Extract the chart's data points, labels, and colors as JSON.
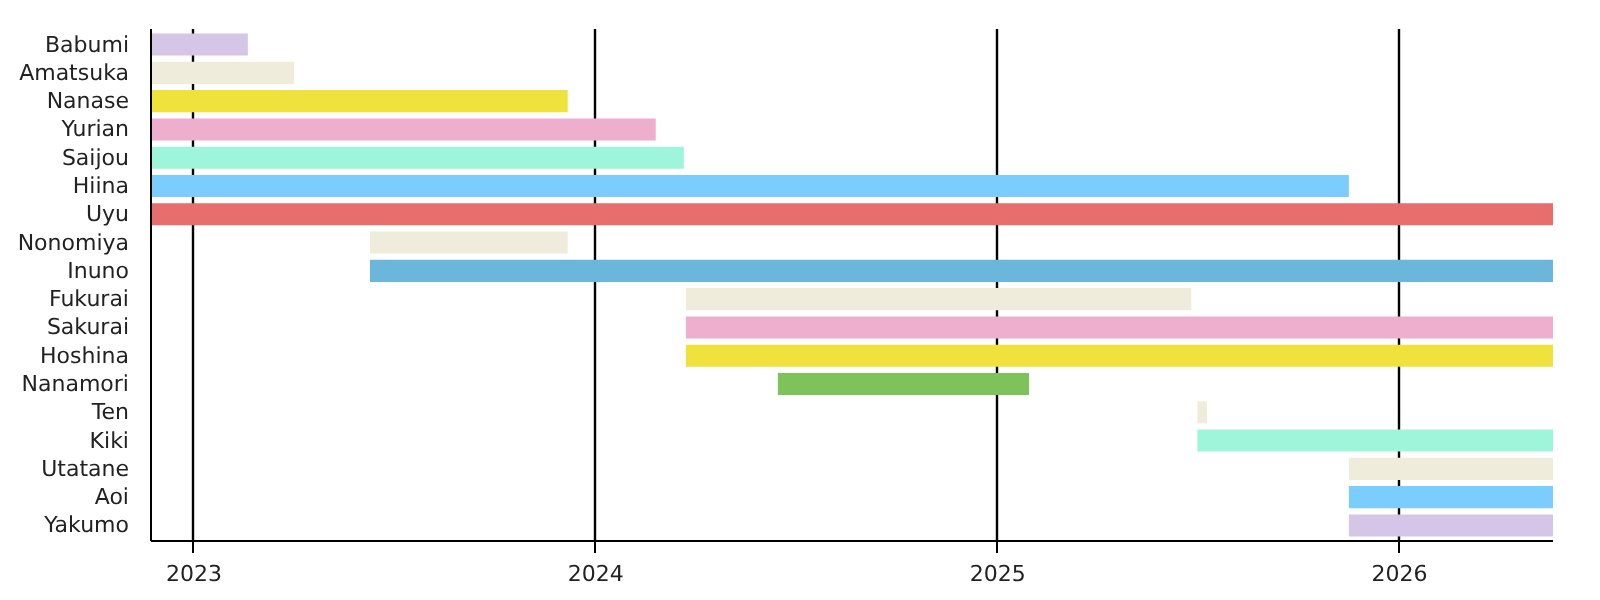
{
  "chart_data": {
    "type": "bar",
    "orientation": "horizontal",
    "grid": "x",
    "categories": [
      "Babumi",
      "Amatsuka",
      "Nanase",
      "Yurian",
      "Saijou",
      "Hiina",
      "Uyu",
      "Nonomiya",
      "Inuno",
      "Fukurai",
      "Sakurai",
      "Hoshina",
      "Nanamori",
      "Ten",
      "Kiki",
      "Utatane",
      "Aoi",
      "Yakumo"
    ],
    "base": [
      2022.893,
      2022.893,
      2022.893,
      2022.893,
      2022.893,
      2022.893,
      2022.893,
      2023.438,
      2023.438,
      2024.224,
      2024.224,
      2024.224,
      2024.453,
      2025.497,
      2025.497,
      2025.874,
      2025.874,
      2025.874
    ],
    "values": [
      0.241,
      0.356,
      1.037,
      1.256,
      1.326,
      2.981,
      3.489,
      0.492,
      2.944,
      1.258,
      2.158,
      2.158,
      0.625,
      0.024,
      0.885,
      0.508,
      0.508,
      0.508
    ],
    "colors": [
      "#d5c6e8",
      "#f0ecdc",
      "#f0e23c",
      "#eeaecd",
      "#9ff5d9",
      "#7acdfc",
      "#e86d6d",
      "#f0ecdc",
      "#6bb7db",
      "#f0ecdc",
      "#eeaecd",
      "#f0e23c",
      "#7fc25a",
      "#f0ecdc",
      "#9ff5d9",
      "#f0ecdc",
      "#7acdfc",
      "#d5c6e8"
    ],
    "xlim": [
      2022.893,
      2026.382
    ],
    "xticks": [
      2023,
      2024,
      2025,
      2026
    ]
  }
}
